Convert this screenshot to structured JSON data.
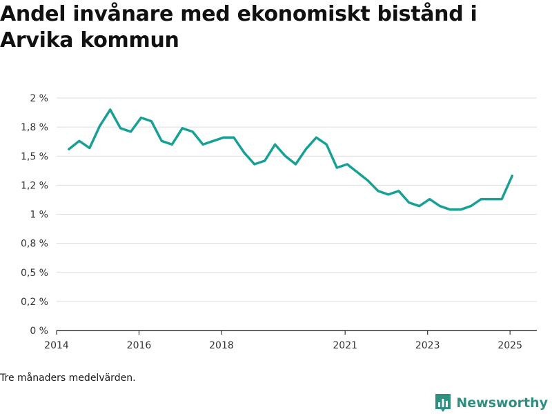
{
  "title": "Andel invånare med ekonomiskt bistånd i Arvika kommun",
  "footnote": "Tre månaders medelvärden.",
  "brand": {
    "name": "Newsworthy",
    "logo_icon": "bar-chart-tag-icon",
    "color": "#2f8f80"
  },
  "chart_data": {
    "type": "line",
    "title": "Andel invånare med ekonomiskt bistånd i Arvika kommun",
    "xlabel": "",
    "ylabel": "",
    "ylim": [
      0,
      2
    ],
    "xlim": [
      2014.0,
      2025.65
    ],
    "x_ticks": [
      2014,
      2016,
      2018,
      2021,
      2023,
      2025
    ],
    "x_tick_labels": [
      "2014",
      "2016",
      "2018",
      "2021",
      "2023",
      "2025"
    ],
    "y_ticks": [
      0,
      0.25,
      0.5,
      0.75,
      1.0,
      1.25,
      1.5,
      1.75,
      2.0
    ],
    "y_tick_labels": [
      "0 %",
      "0,2 %",
      "0,5 %",
      "0,8 %",
      "1 %",
      "1,2 %",
      "1,5 %",
      "1,8 %",
      "2 %"
    ],
    "grid": true,
    "line_color": "#17a096",
    "series": [
      {
        "x": [
          2014.3,
          2014.55,
          2014.8,
          2015.05,
          2015.3,
          2015.55,
          2015.8,
          2016.05,
          2016.3,
          2016.55,
          2016.8,
          2017.05,
          2017.3,
          2017.55,
          2017.8,
          2018.05,
          2018.3,
          2018.55,
          2018.8,
          2019.05,
          2019.3,
          2019.55,
          2019.8,
          2020.05,
          2020.3,
          2020.55,
          2020.8,
          2021.05,
          2021.3,
          2021.55,
          2021.8,
          2022.05,
          2022.3,
          2022.55,
          2022.8,
          2023.05,
          2023.3,
          2023.55,
          2023.8,
          2024.05,
          2024.3,
          2024.55,
          2024.8,
          2025.05
        ],
        "values": [
          1.56,
          1.63,
          1.57,
          1.76,
          1.9,
          1.74,
          1.71,
          1.83,
          1.8,
          1.63,
          1.6,
          1.74,
          1.71,
          1.6,
          1.63,
          1.66,
          1.66,
          1.53,
          1.43,
          1.46,
          1.6,
          1.5,
          1.43,
          1.56,
          1.66,
          1.6,
          1.4,
          1.43,
          1.36,
          1.29,
          1.2,
          1.17,
          1.2,
          1.1,
          1.07,
          1.13,
          1.07,
          1.04,
          1.04,
          1.07,
          1.13,
          1.13,
          1.13,
          1.33
        ]
      }
    ]
  }
}
